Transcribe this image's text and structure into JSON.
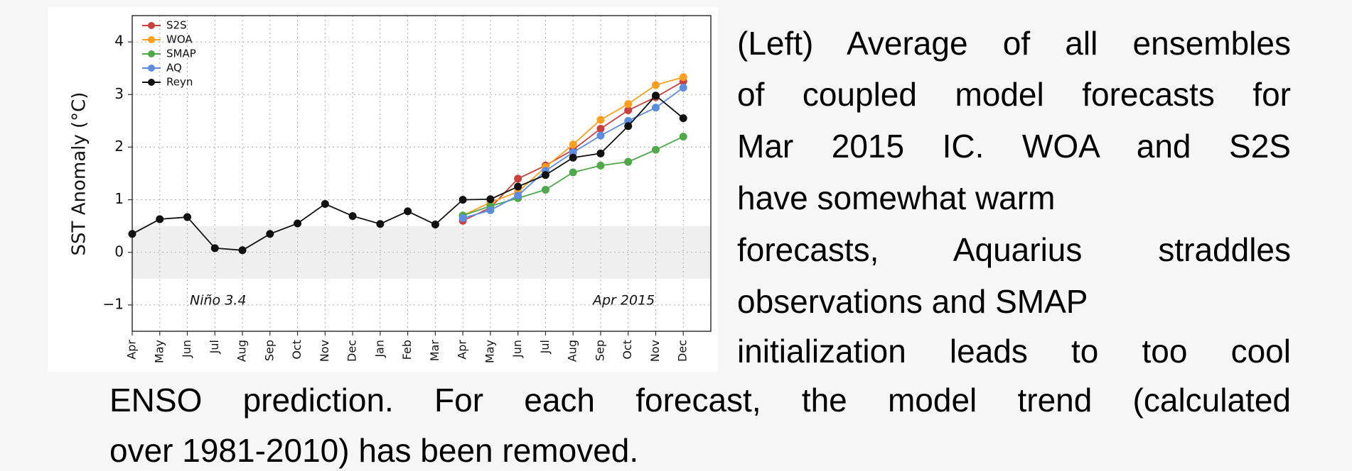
{
  "chart_data": {
    "type": "line",
    "ylabel": "SST Anomaly (°C)",
    "categories": [
      "Apr",
      "May",
      "Jun",
      "Jul",
      "Aug",
      "Sep",
      "Oct",
      "Nov",
      "Dec",
      "Jan",
      "Feb",
      "Mar",
      "Apr",
      "May",
      "Jun",
      "Jul",
      "Aug",
      "Sep",
      "Oct",
      "Nov",
      "Dec"
    ],
    "series": [
      {
        "name": "S2S",
        "color": "#c8413f",
        "values": [
          null,
          null,
          null,
          null,
          null,
          null,
          null,
          null,
          null,
          null,
          null,
          null,
          0.6,
          0.85,
          1.4,
          1.65,
          1.95,
          2.35,
          2.7,
          2.95,
          3.25
        ]
      },
      {
        "name": "WOA",
        "color": "#ff9f1c",
        "values": [
          null,
          null,
          null,
          null,
          null,
          null,
          null,
          null,
          null,
          null,
          null,
          null,
          0.7,
          0.95,
          1.15,
          1.62,
          2.05,
          2.52,
          2.82,
          3.18,
          3.33
        ]
      },
      {
        "name": "SMAP",
        "color": "#4fa84a",
        "values": [
          null,
          null,
          null,
          null,
          null,
          null,
          null,
          null,
          null,
          null,
          null,
          null,
          0.7,
          0.88,
          1.03,
          1.19,
          1.52,
          1.65,
          1.72,
          1.95,
          2.2
        ]
      },
      {
        "name": "AQ",
        "color": "#5b8de0",
        "values": [
          null,
          null,
          null,
          null,
          null,
          null,
          null,
          null,
          null,
          null,
          null,
          null,
          0.65,
          0.8,
          1.08,
          1.55,
          1.9,
          2.22,
          2.5,
          2.75,
          3.13
        ]
      },
      {
        "name": "Reyn",
        "color": "#111111",
        "values": [
          0.35,
          0.63,
          0.67,
          0.08,
          0.04,
          0.35,
          0.55,
          0.92,
          0.69,
          0.54,
          0.78,
          0.53,
          1.0,
          1.01,
          1.25,
          1.47,
          1.8,
          1.88,
          2.4,
          2.98,
          2.55
        ]
      }
    ],
    "shaded_band": [
      -0.5,
      0.5
    ],
    "ylim": [
      -1.5,
      4.5
    ],
    "yticks": [
      {
        "value": -1,
        "label": "−1"
      },
      0,
      1,
      2,
      3,
      4
    ],
    "grid": true,
    "legend": "upper left",
    "annotations": [
      "Niño 3.4",
      "Apr 2015"
    ]
  },
  "caption": {
    "lines": [
      "(Left) Average of all ensembles",
      "of coupled model forecasts for",
      "Mar 2015 IC. WOA and S2S",
      "have somewhat warm",
      "forecasts, Aquarius straddles",
      "observations and SMAP",
      "initialization leads to too cool",
      "ENSO prediction.  For each forecast, the model trend (calculated",
      "over 1981-2010) has been removed."
    ]
  }
}
